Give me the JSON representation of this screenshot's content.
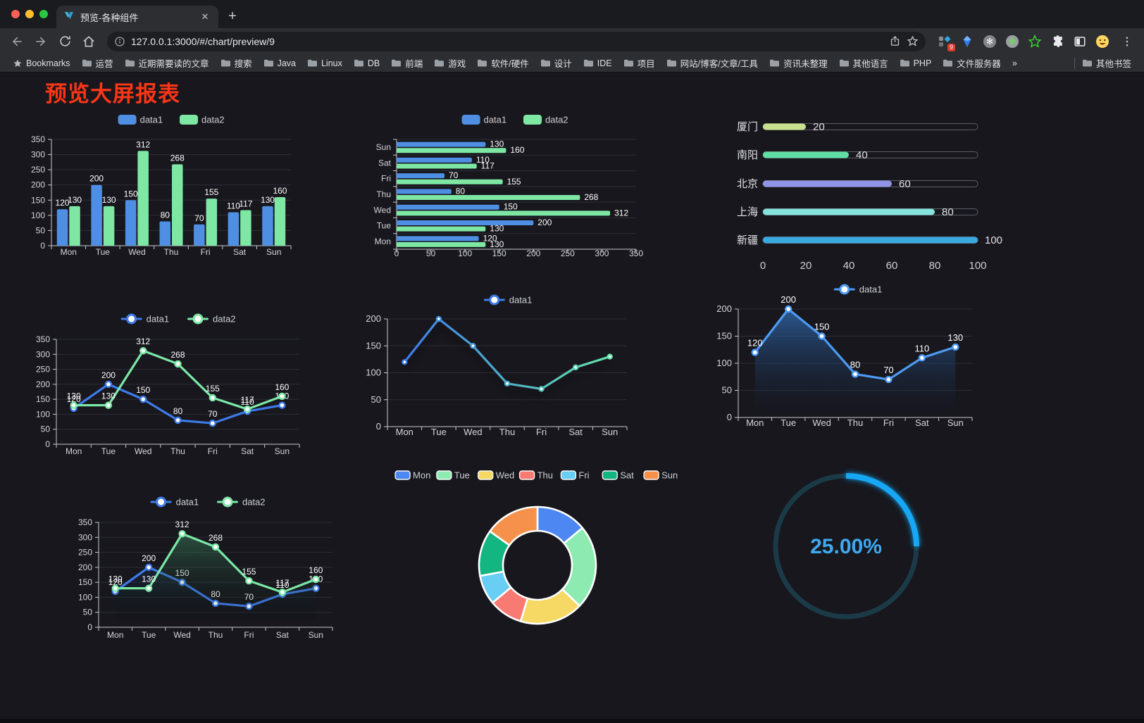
{
  "browser": {
    "tab_title": "预览-各种组件",
    "url": "127.0.0.1:3000/#/chart/preview/9",
    "new_tab_label": "+",
    "traffic_lights": {
      "close": "#FF5F57",
      "minimize": "#FEBC2E",
      "zoom": "#28C840"
    },
    "bookmarks_label": "Bookmarks",
    "bookmarks": [
      "运营",
      "近期需要读的文章",
      "搜索",
      "Java",
      "Linux",
      "DB",
      "前端",
      "游戏",
      "软件/硬件",
      "设计",
      "IDE",
      "项目",
      "网站/博客/文章/工具",
      "资讯未整理",
      "其他语言",
      "PHP",
      "文件服务器"
    ],
    "bookmarks_overflow": "»",
    "other_bookmarks": "其他书签",
    "extension_badge": "9",
    "extension_icons": [
      "grid-badge",
      "blue-gem",
      "snowflake-circle",
      "dot-circle",
      "green-star",
      "puzzle",
      "sidebar-toggle",
      "emoji-face"
    ]
  },
  "page": {
    "title": "预览大屏报表",
    "title_color": "#FA3616",
    "background": "#17171D"
  },
  "chart_data": [
    {
      "id": "c1",
      "type": "bar",
      "categories": [
        "Mon",
        "Tue",
        "Wed",
        "Thu",
        "Fri",
        "Sat",
        "Sun"
      ],
      "series": [
        {
          "name": "data1",
          "color": "#4E8FE4",
          "values": [
            120,
            200,
            150,
            80,
            70,
            110,
            130
          ]
        },
        {
          "name": "data2",
          "color": "#7EE7A4",
          "values": [
            130,
            130,
            312,
            268,
            155,
            117,
            160
          ]
        }
      ],
      "ylim": [
        0,
        350
      ],
      "ystep": 50,
      "labels": true,
      "legend_position": "top",
      "grid": true
    },
    {
      "id": "c2",
      "type": "bar-horizontal",
      "categories": [
        "Mon",
        "Tue",
        "Wed",
        "Thu",
        "Fri",
        "Sat",
        "Sun"
      ],
      "series": [
        {
          "name": "data1",
          "color": "#4E8FE4",
          "values": [
            120,
            200,
            150,
            80,
            70,
            110,
            130
          ]
        },
        {
          "name": "data2",
          "color": "#7EE7A4",
          "values": [
            130,
            130,
            312,
            268,
            155,
            117,
            160
          ]
        }
      ],
      "xlim": [
        0,
        350
      ],
      "xstep": 50,
      "labels": true,
      "legend_position": "top",
      "grid": true
    },
    {
      "id": "c3",
      "type": "progress",
      "rows": [
        {
          "label": "厦门",
          "value": 20,
          "color": "#C9E08E"
        },
        {
          "label": "南阳",
          "value": 40,
          "color": "#5FDFA3"
        },
        {
          "label": "北京",
          "value": 60,
          "color": "#9093E6"
        },
        {
          "label": "上海",
          "value": 80,
          "color": "#86E3DB"
        },
        {
          "label": "新疆",
          "value": 100,
          "color": "#39A9DF"
        }
      ],
      "xlim": [
        0,
        100
      ],
      "xticks": [
        0,
        20,
        40,
        60,
        80,
        100
      ]
    },
    {
      "id": "c4",
      "type": "line",
      "categories": [
        "Mon",
        "Tue",
        "Wed",
        "Thu",
        "Fri",
        "Sat",
        "Sun"
      ],
      "series": [
        {
          "name": "data1",
          "color": "#3E7BEA",
          "values": [
            120,
            200,
            150,
            80,
            70,
            110,
            130
          ]
        },
        {
          "name": "data2",
          "color": "#7CE8A6",
          "values": [
            130,
            130,
            312,
            268,
            155,
            117,
            160
          ]
        }
      ],
      "ylim": [
        0,
        350
      ],
      "ystep": 50,
      "labels": true,
      "legend_position": "top",
      "grid": true
    },
    {
      "id": "c5",
      "type": "line",
      "categories": [
        "Mon",
        "Tue",
        "Wed",
        "Thu",
        "Fri",
        "Sat",
        "Sun"
      ],
      "series": [
        {
          "name": "data1",
          "gradient": [
            "#3E7BEA",
            "#62E2A8"
          ],
          "values": [
            120,
            200,
            150,
            80,
            70,
            110,
            130
          ]
        }
      ],
      "ylim": [
        0,
        200
      ],
      "ystep": 50,
      "labels": false,
      "shadow": true,
      "legend_position": "top",
      "grid": true
    },
    {
      "id": "c6",
      "type": "area",
      "categories": [
        "Mon",
        "Tue",
        "Wed",
        "Thu",
        "Fri",
        "Sat",
        "Sun"
      ],
      "series": [
        {
          "name": "data1",
          "color": "#4D9AF5",
          "fill": [
            "rgba(46,96,158,0.9)",
            "rgba(23,35,55,0)"
          ],
          "values": [
            120,
            200,
            150,
            80,
            70,
            110,
            130
          ]
        }
      ],
      "ylim": [
        0,
        200
      ],
      "ystep": 50,
      "labels": true,
      "legend_position": "top",
      "grid": true
    },
    {
      "id": "c7",
      "type": "area",
      "categories": [
        "Mon",
        "Tue",
        "Wed",
        "Thu",
        "Fri",
        "Sat",
        "Sun"
      ],
      "series": [
        {
          "name": "data1",
          "color": "#3E7BEA",
          "fill": [
            "rgba(52,100,180,0.6)",
            "rgba(0,0,0,0)"
          ],
          "values": [
            120,
            200,
            150,
            80,
            70,
            110,
            130
          ]
        },
        {
          "name": "data2",
          "color": "#7CE8A6",
          "fill": [
            "rgba(76,170,120,0.5)",
            "rgba(0,0,0,0)"
          ],
          "values": [
            130,
            130,
            312,
            268,
            155,
            117,
            160
          ]
        }
      ],
      "ylim": [
        0,
        350
      ],
      "ystep": 50,
      "labels": true,
      "legend_position": "top",
      "grid": true
    },
    {
      "id": "c8",
      "type": "pie",
      "categories": [
        "Mon",
        "Tue",
        "Wed",
        "Thu",
        "Fri",
        "Sat",
        "Sun"
      ],
      "values": [
        120,
        200,
        150,
        80,
        70,
        110,
        130
      ],
      "colors": [
        "#4D87F2",
        "#8DEBB1",
        "#F5D964",
        "#F97A72",
        "#68CEF4",
        "#13B581",
        "#F6914C"
      ],
      "legend_position": "top",
      "donut": true
    },
    {
      "id": "c9",
      "type": "gauge",
      "value": 25,
      "label": "25.00%",
      "color": "#18A8F5",
      "track": "#1B3A47",
      "text_color": "#3FA9F0",
      "range": [
        0,
        100
      ]
    }
  ]
}
